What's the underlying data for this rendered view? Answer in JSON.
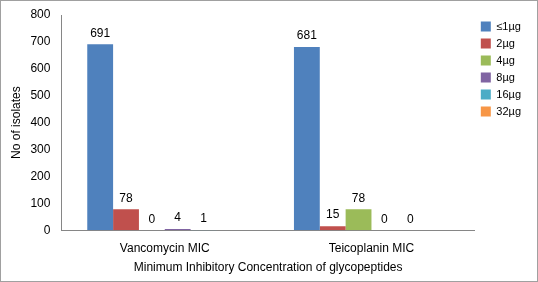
{
  "chart_data": {
    "type": "bar",
    "x_label": "Minimum Inhibitory Concentration of glycopeptides",
    "y_label": "No of isolates",
    "categories": [
      "Vancomycin MIC",
      "Teicoplanin MIC"
    ],
    "series": [
      {
        "name": "≤1µg",
        "color": "#4f81bd",
        "values": [
          691,
          681
        ]
      },
      {
        "name": "2µg",
        "color": "#c0504d",
        "values": [
          78,
          15
        ]
      },
      {
        "name": "4µg",
        "color": "#9bbb59",
        "values": [
          0,
          78
        ]
      },
      {
        "name": "8µg",
        "color": "#8064a2",
        "values": [
          4,
          0
        ]
      },
      {
        "name": "16µg",
        "color": "#4bacc6",
        "values": [
          1,
          0
        ]
      },
      {
        "name": "32µg",
        "color": "#f79646",
        "values": [
          null,
          null
        ]
      }
    ],
    "ylim": [
      0,
      800
    ],
    "yticks": [
      0,
      100,
      200,
      300,
      400,
      500,
      600,
      700,
      800
    ],
    "grid": false,
    "legend": "right",
    "data_labels": true
  }
}
